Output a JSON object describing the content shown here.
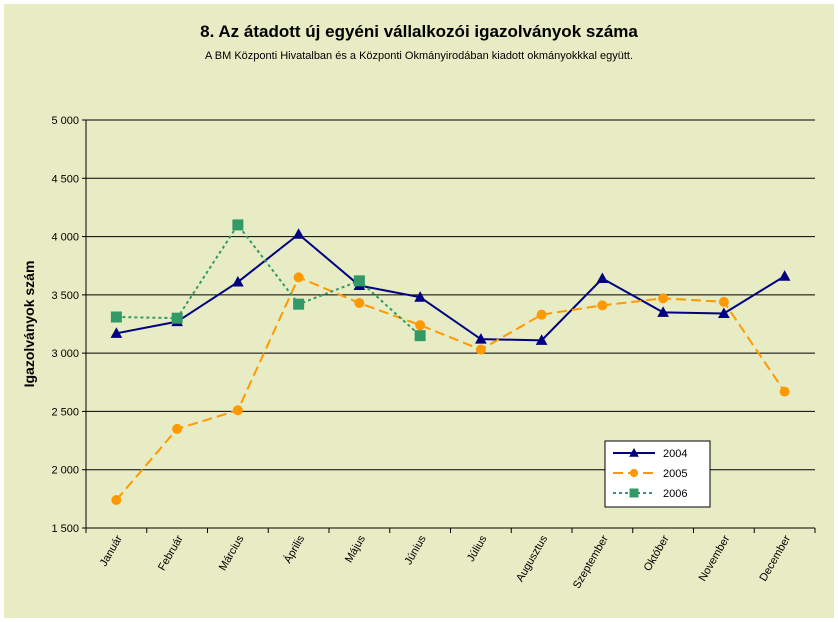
{
  "chart_data": {
    "type": "line",
    "title": "8. Az átadott új egyéni vállalkozói  igazolványok száma",
    "subtitle": "A BM Központi Hivatalban és a Központi Okmányirodában kiadott okmányokkkal együtt.",
    "ylabel": "Igazolványok szám",
    "xlabel": "",
    "categories": [
      "Január",
      "Február",
      "Március",
      "Április",
      "Május",
      "Június",
      "Július",
      "Augusztus",
      "Szeptember",
      "Október",
      "November",
      "December"
    ],
    "ylim": [
      1500,
      5000
    ],
    "yticks": [
      1500,
      2000,
      2500,
      3000,
      3500,
      4000,
      4500,
      5000
    ],
    "ytick_labels": [
      "1 500",
      "2 000",
      "2 500",
      "3 000",
      "3 500",
      "4 000",
      "4 500",
      "5 000"
    ],
    "grid": true,
    "legend_position": "bottom-right",
    "series": [
      {
        "name": "2004",
        "color": "#000080",
        "style": "solid",
        "marker": "triangle",
        "values": [
          3170,
          3270,
          3610,
          4020,
          3580,
          3480,
          3120,
          3110,
          3640,
          3350,
          3340,
          3660
        ]
      },
      {
        "name": "2005",
        "color": "#ff9900",
        "style": "dashed",
        "marker": "circle",
        "values": [
          1740,
          2350,
          2510,
          3650,
          3430,
          3240,
          3030,
          3330,
          3410,
          3470,
          3440,
          2670
        ]
      },
      {
        "name": "2006",
        "color": "#339966",
        "style": "dotted",
        "marker": "square",
        "values": [
          3310,
          3300,
          4100,
          3420,
          3620,
          3150,
          null,
          null,
          null,
          null,
          null,
          null
        ]
      }
    ]
  }
}
